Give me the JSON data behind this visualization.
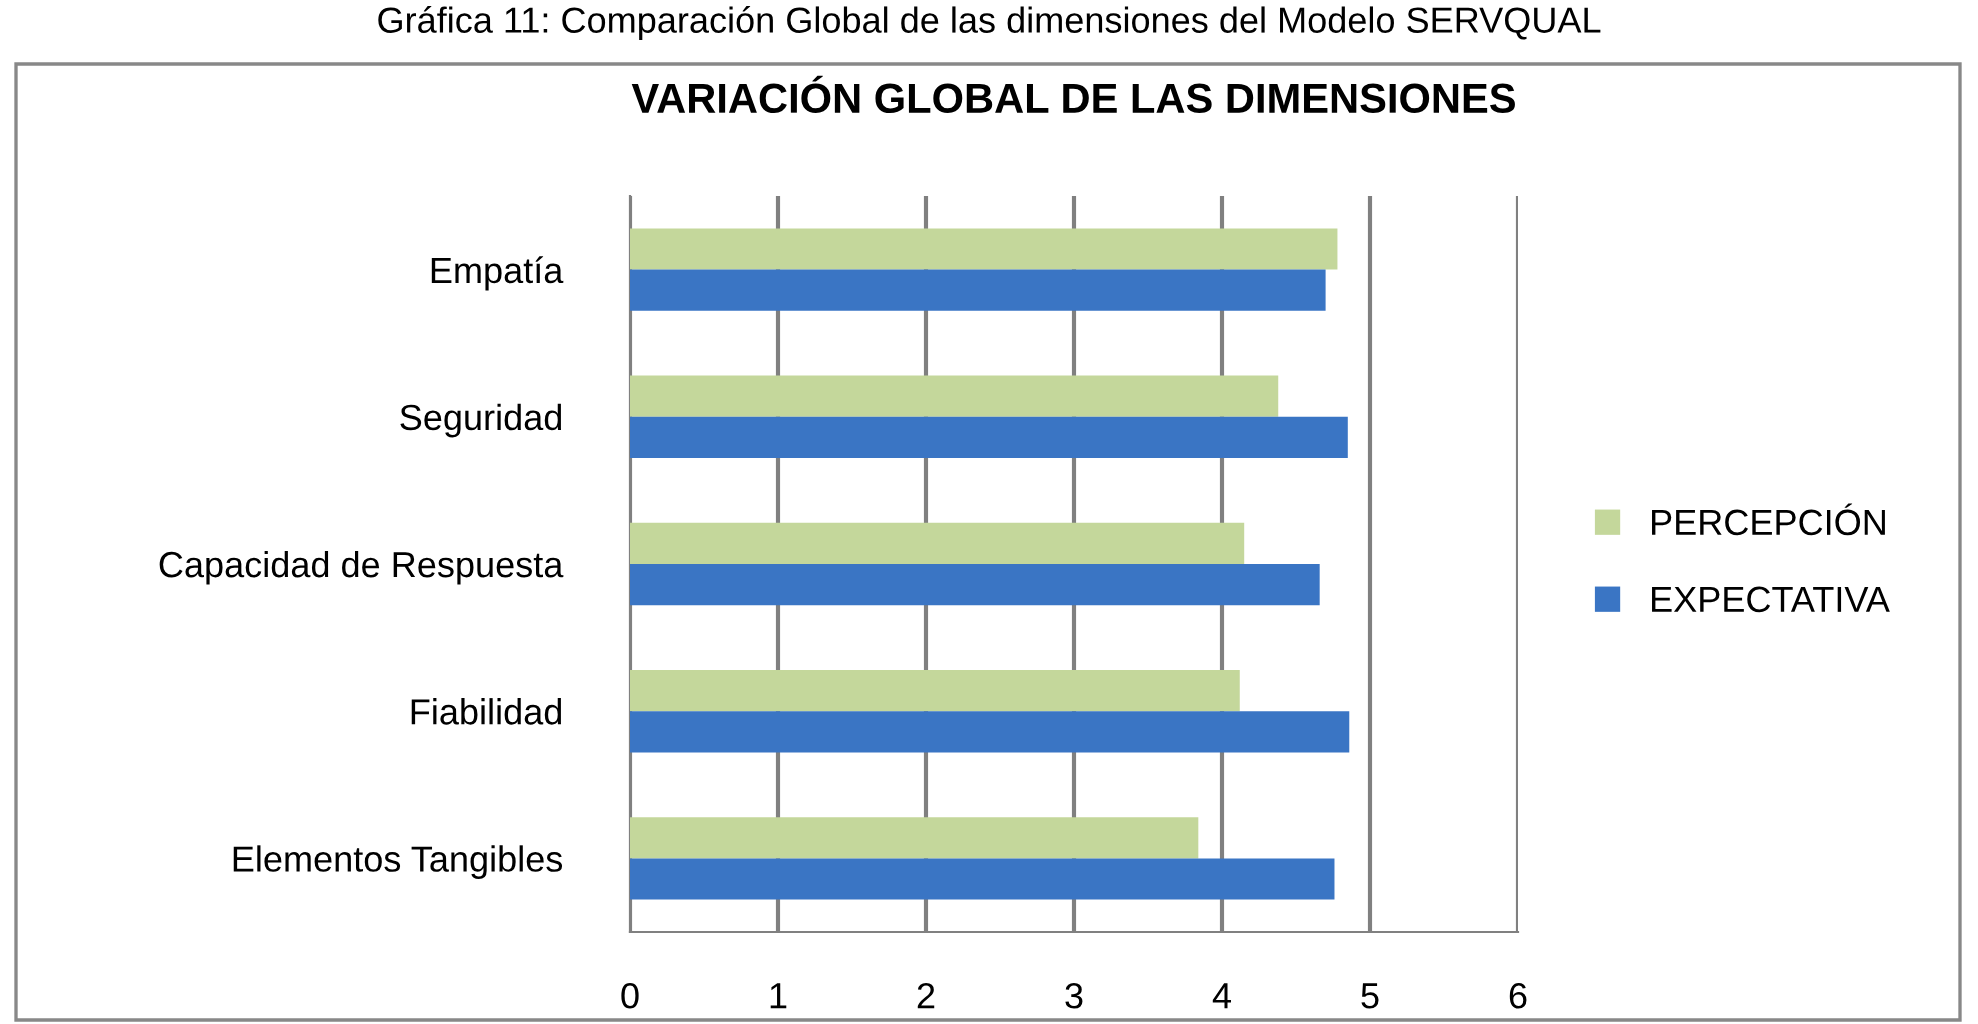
{
  "chart_data": {
    "type": "bar",
    "orientation": "horizontal",
    "title": "VARIACIÓN GLOBAL DE LAS DIMENSIONES",
    "annotations": [
      "Gráfica 11: Comparación Global de las dimensiones del Modelo SERVQUAL"
    ],
    "categories": [
      "Empatía",
      "Seguridad",
      "Capacidad de Respuesta",
      "Fiabilidad",
      "Elementos Tangibles"
    ],
    "series": [
      {
        "name": "PERCEPCIÓN",
        "color": "#c4d79b",
        "values": [
          4.78,
          4.38,
          4.15,
          4.12,
          3.84
        ]
      },
      {
        "name": "EXPECTATIVA",
        "color": "#3a75c4",
        "values": [
          4.7,
          4.85,
          4.66,
          4.86,
          4.76
        ]
      }
    ],
    "xlim": [
      0,
      6
    ],
    "xticks": [
      0,
      1,
      2,
      3,
      4,
      5,
      6
    ],
    "grid": "x",
    "legend": "right"
  }
}
